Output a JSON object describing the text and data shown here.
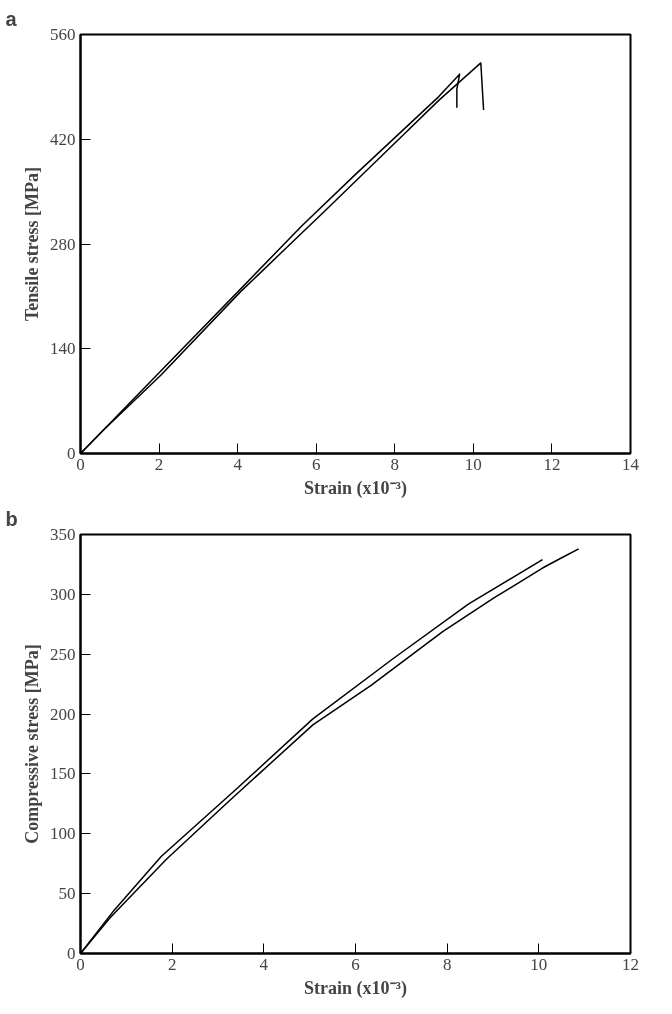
{
  "chart_data": [
    {
      "type": "line",
      "title": "a",
      "xlabel": "Strain (x10⁻³)",
      "ylabel": "Tensile stress [MPa]",
      "xlim": [
        0,
        14
      ],
      "xticks": [
        0,
        2,
        4,
        6,
        8,
        10,
        12,
        14
      ],
      "ylim": [
        0,
        560
      ],
      "yticks": [
        0,
        140,
        280,
        420,
        560
      ],
      "grid": false,
      "series": [
        {
          "color": "#000000",
          "x": [
            0,
            0.67,
            5.63,
            7.0,
            9.12,
            9.65,
            9.58,
            9.58
          ],
          "values": [
            0,
            36,
            304,
            373,
            477,
            507,
            487,
            462
          ]
        },
        {
          "color": "#000000",
          "x": [
            0,
            0.58,
            2.05,
            4.07,
            5.54,
            6.18,
            8.2,
            9.12,
            10.19,
            10.26
          ],
          "values": [
            0,
            31,
            105,
            216,
            290,
            322,
            425,
            472,
            522,
            459
          ]
        }
      ]
    },
    {
      "type": "line",
      "title": "b",
      "xlabel": "Strain (x10⁻³)",
      "ylabel": "Compressive stress [MPa]",
      "xlim": [
        0,
        12
      ],
      "xticks": [
        0,
        2,
        4,
        6,
        8,
        10,
        12
      ],
      "ylim": [
        0,
        350
      ],
      "yticks": [
        0,
        50,
        100,
        150,
        200,
        250,
        300,
        350
      ],
      "grid": false,
      "series": [
        {
          "color": "#000000",
          "x": [
            0,
            0.73,
            1.76,
            3.42,
            5.07,
            6.81,
            8.47,
            10.08
          ],
          "values": [
            0,
            36,
            81,
            138,
            196,
            246,
            292,
            329
          ]
        },
        {
          "color": "#000000",
          "x": [
            0,
            0.65,
            1.88,
            3.26,
            5.07,
            6.34,
            7.91,
            9.02,
            10.08,
            10.52,
            10.87
          ],
          "values": [
            0,
            30,
            79,
            128,
            191,
            224,
            269,
            297,
            322,
            331,
            338
          ]
        }
      ]
    }
  ]
}
